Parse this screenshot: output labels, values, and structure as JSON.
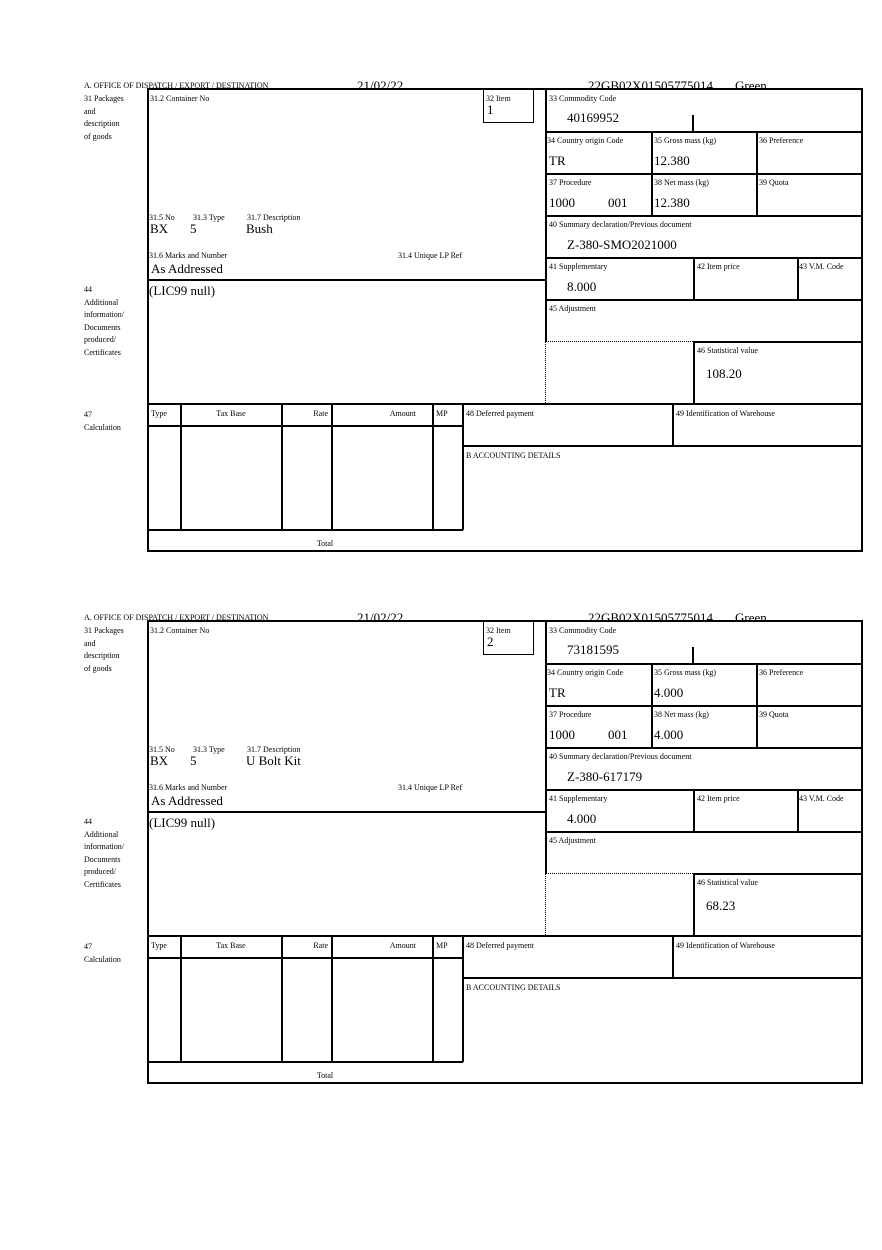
{
  "labels": {
    "office": "A.  OFFICE OF DISPATCH / EXPORT / DESTINATION",
    "packages": [
      "31 Packages",
      "and",
      "description",
      "of goods"
    ],
    "container_no": "31.2 Container No",
    "item": "32 Item",
    "no": "31.5 No",
    "type": "31.3 Type",
    "description": "31.7 Description",
    "marks": "31.6 Marks and Number",
    "unique_lp": "31.4 Unique LP Ref",
    "additional": [
      "44",
      "Additional",
      "information/",
      "Documents",
      "produced/",
      "Certificates"
    ],
    "commodity": "33 Commodity Code",
    "country": "34 Country origin Code",
    "gross": "35 Gross mass (kg)",
    "preference": "36 Preference",
    "procedure": "37 Procedure",
    "net": "38 Net mass (kg)",
    "quota": "39 Quota",
    "summary": "40 Summary declaration/Previous document",
    "supplementary": "41 Supplementary",
    "item_price": "42 Item price",
    "vm_code": "43 V.M. Code",
    "adjustment": "45 Adjustment",
    "statistical": "46 Statistical value",
    "calculation": [
      "47",
      "Calculation"
    ],
    "calc_cols": [
      "Type",
      "Tax Base",
      "Rate",
      "Amount",
      "MP"
    ],
    "total": "Total",
    "deferred": "48 Deferred payment",
    "warehouse": "49 Identification of Warehouse",
    "accounting": "B ACCOUNTING DETAILS"
  },
  "items": [
    {
      "date": "21/02/22",
      "reference": "22GB02X01505775014",
      "route": "Green",
      "item_no": "1",
      "package_kind": "BX",
      "package_count": "5",
      "description": "Bush",
      "marks": "As Addressed",
      "additional_info": "(LIC99 null)",
      "commodity_code": "40169952",
      "country_origin": "TR",
      "gross_mass": "12.380",
      "procedure_code": "1000",
      "procedure_additional": "001",
      "net_mass": "12.380",
      "previous_document": "Z-380-SMO2021000",
      "supplementary": "8.000",
      "statistical_value": "108.20"
    },
    {
      "date": "21/02/22",
      "reference": "22GB02X01505775014",
      "route": "Green",
      "item_no": "2",
      "package_kind": "BX",
      "package_count": "5",
      "description": "U Bolt Kit",
      "marks": "As Addressed",
      "additional_info": "(LIC99 null)",
      "commodity_code": "73181595",
      "country_origin": "TR",
      "gross_mass": "4.000",
      "procedure_code": "1000",
      "procedure_additional": "001",
      "net_mass": "4.000",
      "previous_document": "Z-380-617179",
      "supplementary": "4.000",
      "statistical_value": "68.23"
    }
  ]
}
